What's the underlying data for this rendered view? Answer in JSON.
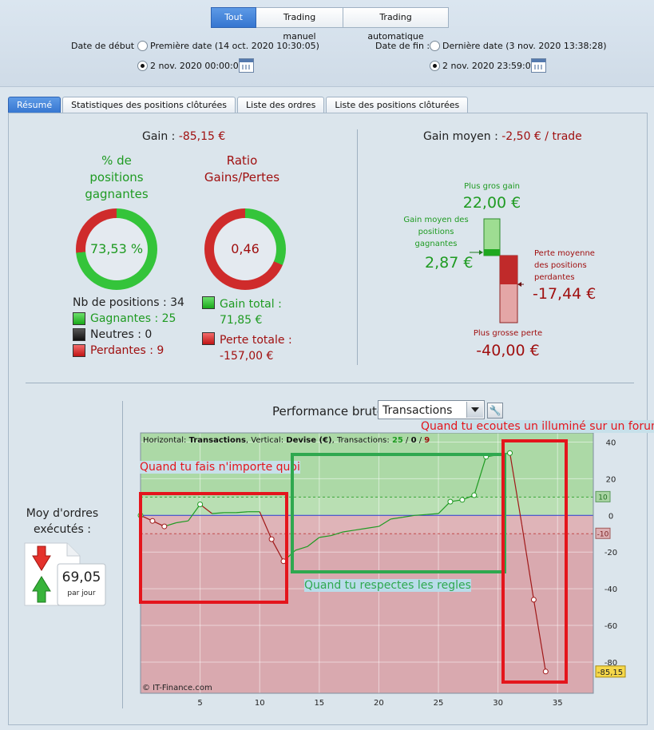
{
  "filter_tabs": [
    "Tout",
    "Trading manuel",
    "Trading automatique"
  ],
  "date_debut": {
    "label": "Date de début :",
    "option1": "Première date (14 oct. 2020 10:30:05)",
    "option2": "2 nov. 2020 00:00:05"
  },
  "date_fin": {
    "label": "Date de fin :",
    "option1": "Dernière date (3 nov. 2020 13:38:28)",
    "option2": "2 nov. 2020 23:59:00"
  },
  "tabs": [
    "Résumé",
    "Statistiques des positions clôturées",
    "Liste des ordres",
    "Liste des positions clôturées"
  ],
  "gain": {
    "label": "Gain :",
    "value": "-85,15 €"
  },
  "pct_title": [
    "% de",
    "positions",
    "gagnantes"
  ],
  "pct_value": "73,53 %",
  "pct_fraction": 0.7353,
  "ratio_title": [
    "Ratio",
    "Gains/Pertes"
  ],
  "ratio_value": "0,46",
  "ratio_fraction": 0.314,
  "counts": {
    "total": "Nb de positions : 34",
    "gagnantes": "Gagnantes : 25",
    "neutres": "Neutres : 0",
    "perdantes": "Perdantes : 9"
  },
  "gain_total": {
    "label": "Gain total :",
    "value": "71,85 €"
  },
  "perte_totale": {
    "label": "Perte totale :",
    "value": "-157,00 €"
  },
  "gain_moyen": {
    "label": "Gain moyen :",
    "value": "-2,50 € / trade"
  },
  "plus_gros_gain": {
    "label": "Plus gros gain",
    "value": "22,00 €"
  },
  "gain_moyen_gagnantes": {
    "label": [
      "Gain moyen des",
      "positions",
      "gagnantes"
    ],
    "value": "2,87 €"
  },
  "perte_moyenne": {
    "label": [
      "Perte moyenne",
      "des positions",
      "perdantes"
    ],
    "value": "-17,44 €"
  },
  "plus_grosse_perte": {
    "label": "Plus grosse perte",
    "value": "-40,00 €"
  },
  "moy_ordres": {
    "label": [
      "Moy d'ordres",
      "exécutés :"
    ],
    "value": "69,05",
    "unit": "par jour"
  },
  "performance": {
    "label": "Performance brute",
    "select": "Transactions"
  },
  "chart_data": {
    "type": "line",
    "header": {
      "h_label": "Horizontal:",
      "h_value": "Transactions",
      "v_label": "Vertical:",
      "v_value": "Devise (€)",
      "t_label": "Transactions:",
      "wins": "25",
      "sep1": " / ",
      "neutral": "0",
      "sep2": " / ",
      "losses": "9"
    },
    "x": [
      0,
      1,
      2,
      3,
      4,
      5,
      6,
      7,
      8,
      9,
      10,
      11,
      12,
      13,
      14,
      15,
      16,
      17,
      18,
      19,
      20,
      21,
      22,
      23,
      24,
      25,
      26,
      27,
      28,
      29,
      30,
      31,
      32,
      33,
      34
    ],
    "y": [
      0,
      -3,
      -6,
      -4,
      -3,
      6,
      1,
      1.5,
      1.5,
      2,
      2,
      -13,
      -25,
      -19,
      -17,
      -12,
      -11,
      -9,
      -8,
      -7,
      -6,
      -2,
      -1,
      0,
      0.5,
      1,
      7.5,
      8.5,
      11,
      32,
      33,
      34,
      -5,
      -46,
      -85.15
    ],
    "markers": [
      0,
      1,
      2,
      5,
      11,
      12,
      26,
      27,
      28,
      29,
      31,
      33,
      34
    ],
    "xlim": [
      0,
      38
    ],
    "ylim": [
      -97,
      45
    ],
    "xticks": [
      "5",
      "10",
      "15",
      "20",
      "25",
      "30",
      "35"
    ],
    "yticks": [
      "40",
      "20",
      "0",
      "-20",
      "-40",
      "-60",
      "-80"
    ],
    "target_hi": "10",
    "target_lo": "-10",
    "target_hi_value": 10,
    "target_lo_value": -10,
    "last_value": "-85,15",
    "watermark": "© IT-Finance.com"
  },
  "annotations": {
    "a1": "Quand tu fais n'importe quoi",
    "a2": "Quand tu respectes les regles",
    "a3": "Quand tu ecoutes un illuminé sur un forum"
  },
  "colors": {
    "accent": "#3575d0",
    "green": "#1f9b22",
    "red": "#a01010",
    "annotation_red": "#e4151c",
    "annotation_green": "#2fa84f"
  }
}
